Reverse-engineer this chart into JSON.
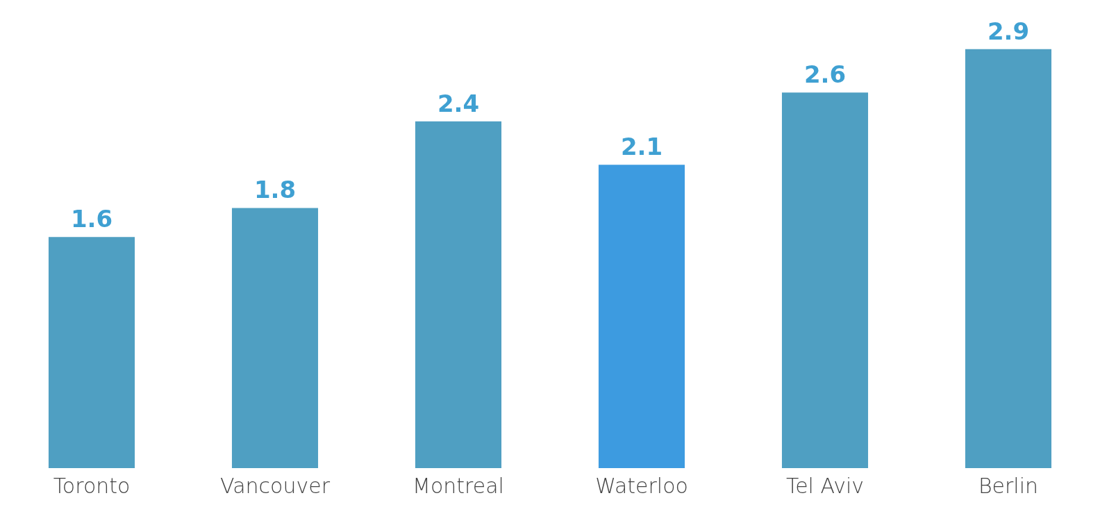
{
  "chart_data": {
    "type": "bar",
    "categories": [
      "Toronto",
      "Vancouver",
      "Montreal",
      "Waterloo",
      "Tel Aviv",
      "Berlin"
    ],
    "values": [
      1.6,
      1.8,
      2.4,
      2.1,
      2.6,
      2.9
    ],
    "colors": [
      "#4f9fc2",
      "#4f9fc2",
      "#4f9fc2",
      "#3d9be0",
      "#4f9fc2",
      "#4f9fc2"
    ],
    "data_labels": true,
    "grid": false,
    "legend": false
  }
}
